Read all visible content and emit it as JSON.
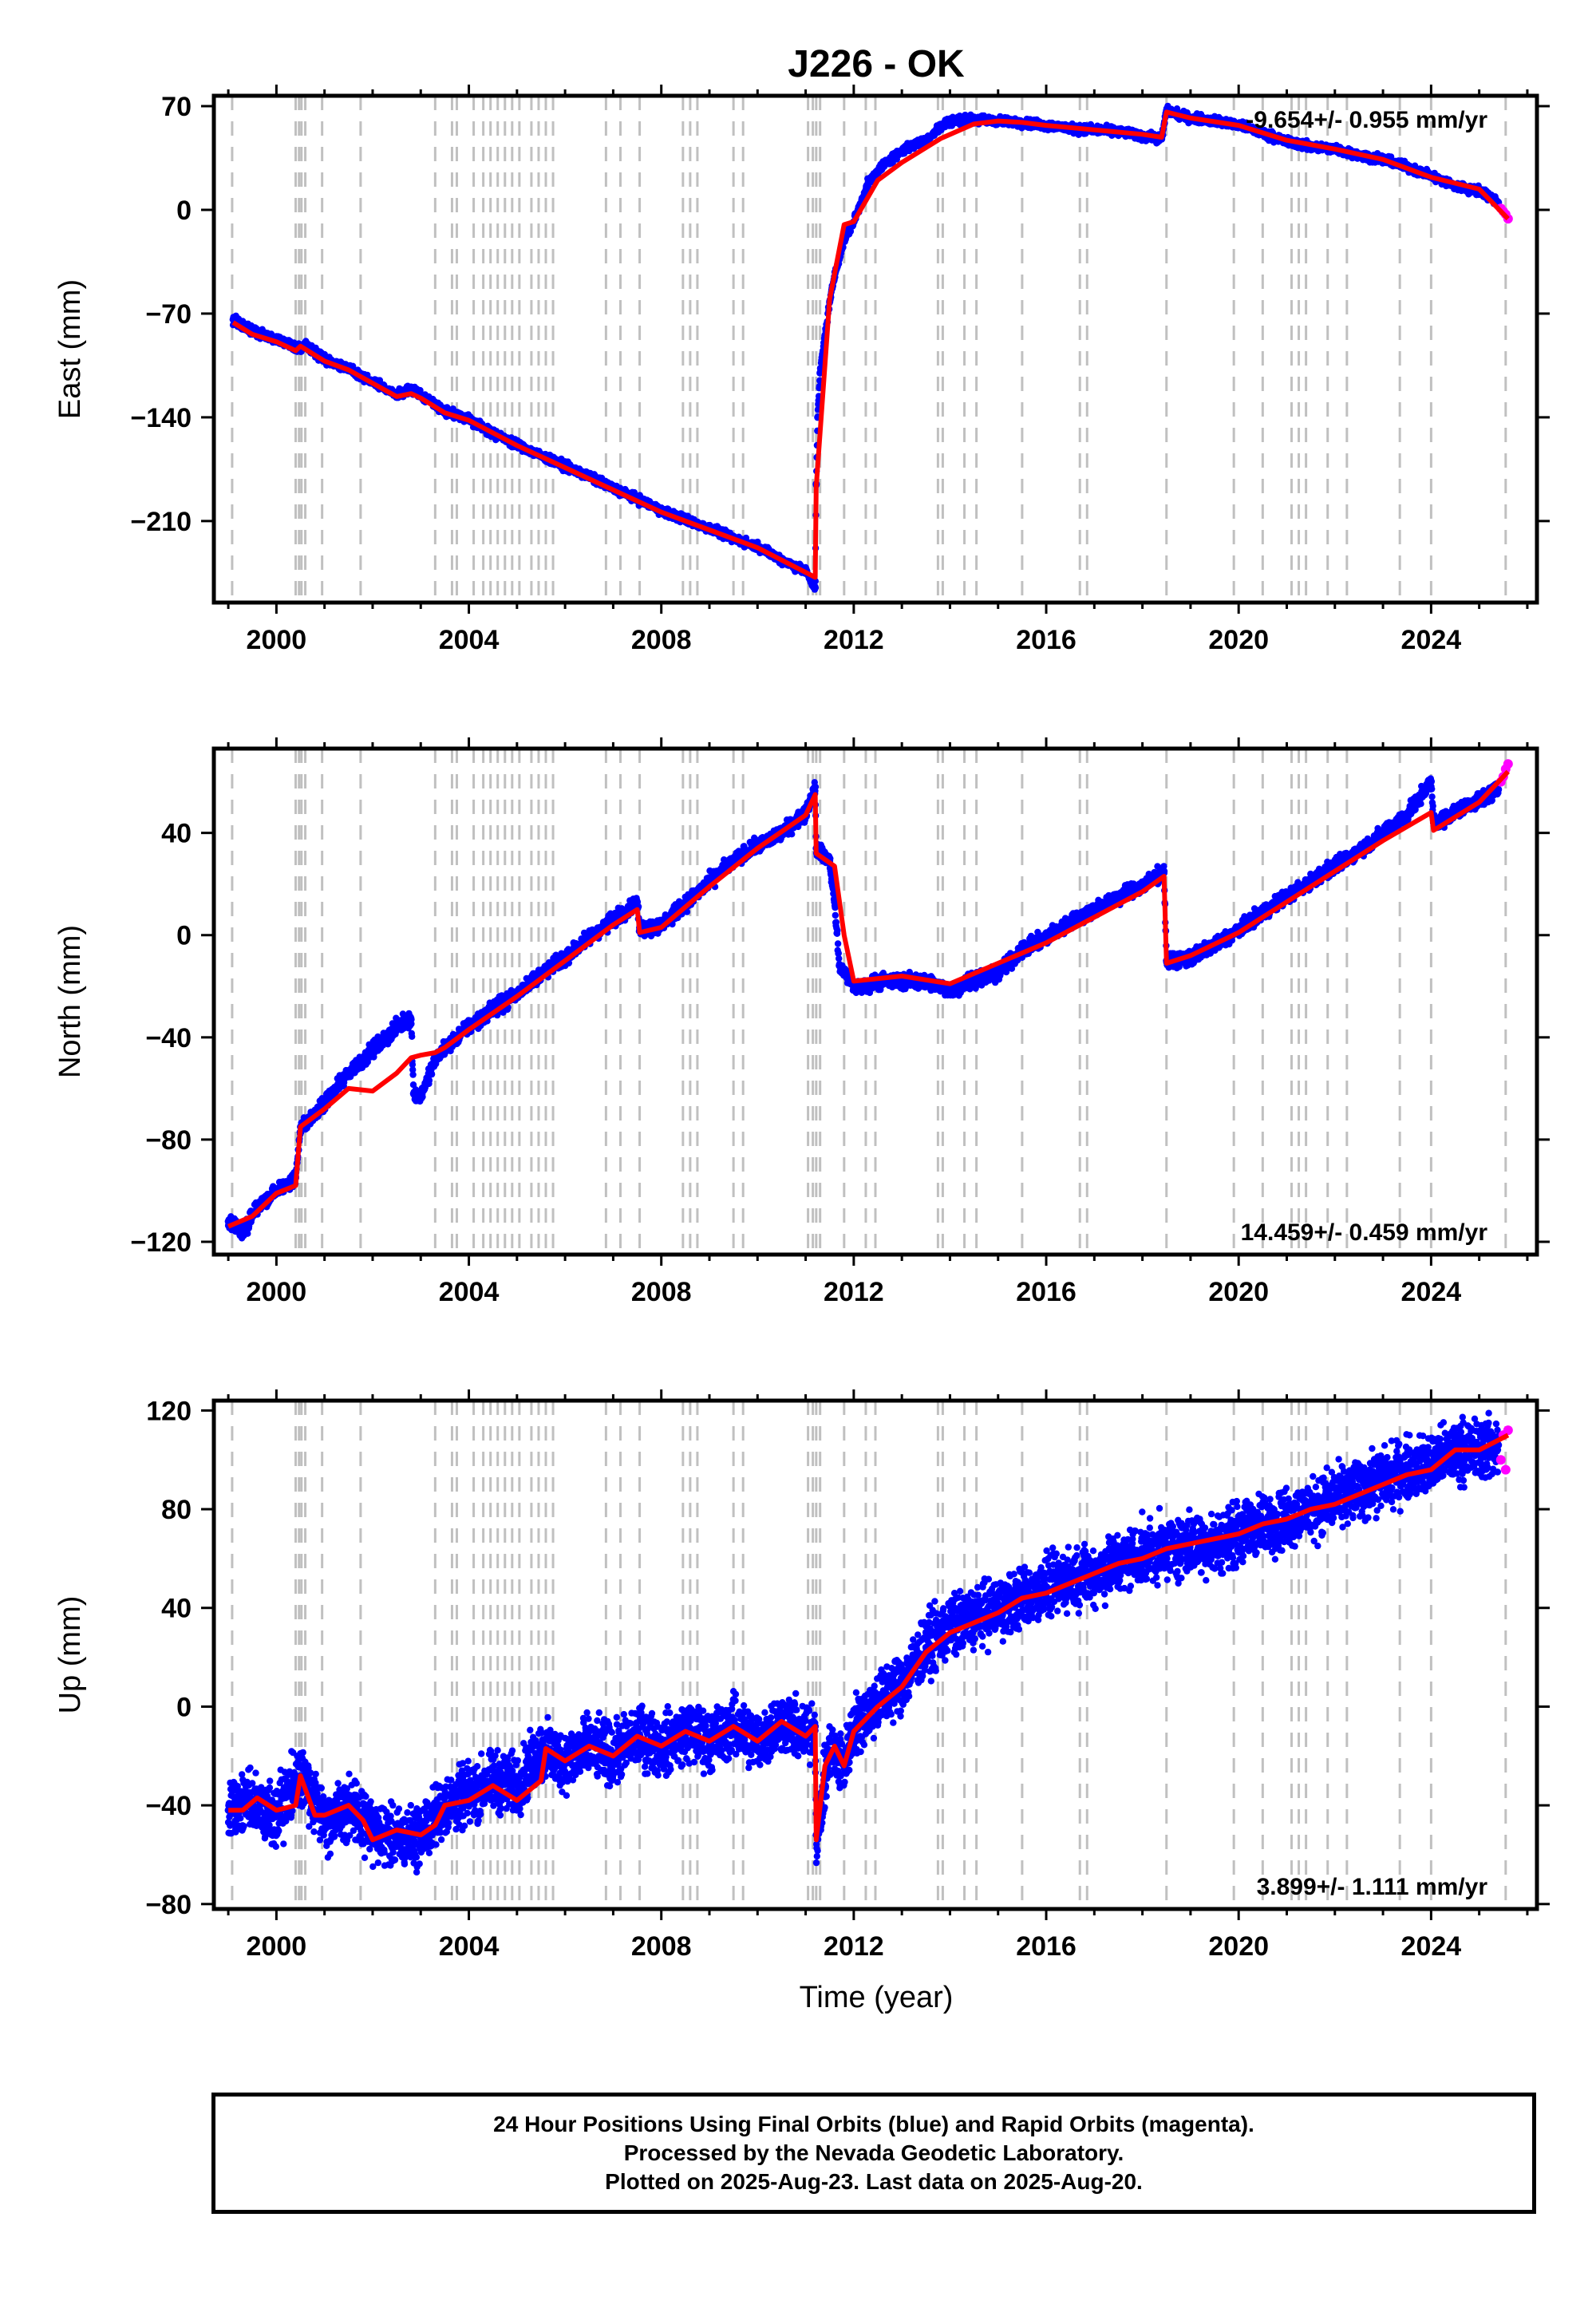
{
  "title": "J226 - OK",
  "xlabel": "Time (year)",
  "footer": {
    "line1": "24 Hour Positions Using Final Orbits (blue) and Rapid Orbits (magenta).",
    "line2": "Processed by the Nevada Geodetic Laboratory.",
    "line3": "Plotted on 2025-Aug-23. Last data on 2025-Aug-20."
  },
  "colors": {
    "final": "#0000ff",
    "rapid": "#ff00ff",
    "model": "#ff0000",
    "event_lines": "#c0c0c0"
  },
  "chart_data": [
    {
      "type": "scatter",
      "panel": "east",
      "ylabel": "East (mm)",
      "ylim": [
        -265,
        77
      ],
      "yticks": [
        70,
        0,
        -70,
        -140,
        -210
      ],
      "xlim": [
        1998.7,
        2026.2
      ],
      "xticks": [
        2000,
        2004,
        2008,
        2012,
        2016,
        2020,
        2024
      ],
      "rate_label": "-9.654+/- 0.955 mm/yr",
      "rate_position": "top-right",
      "series": [
        {
          "name": "Final Orbits",
          "color": "#0000ff",
          "x": [
            1999.1,
            1999.5,
            2000.0,
            2000.5,
            2000.6,
            2001.0,
            2001.5,
            2002.0,
            2002.5,
            2002.8,
            2003.0,
            2003.5,
            2004.0,
            2004.5,
            2005.0,
            2005.5,
            2006.0,
            2006.5,
            2007.0,
            2007.5,
            2008.0,
            2008.5,
            2009.0,
            2009.5,
            2010.0,
            2010.5,
            2011.0,
            2011.2,
            2011.22,
            2011.25,
            2011.3,
            2011.4,
            2011.5,
            2011.6,
            2011.8,
            2012.0,
            2012.3,
            2012.6,
            2013.0,
            2013.5,
            2013.8,
            2014.0,
            2014.5,
            2015.0,
            2015.5,
            2016.0,
            2016.5,
            2017.0,
            2017.5,
            2018.0,
            2018.4,
            2018.5,
            2019.0,
            2019.5,
            2020.0,
            2020.5,
            2021.0,
            2021.5,
            2022.0,
            2022.5,
            2023.0,
            2023.5,
            2024.0,
            2024.5,
            2025.0,
            2025.4
          ],
          "y": [
            -74,
            -82,
            -87,
            -94,
            -91,
            -101,
            -107,
            -116,
            -125,
            -121,
            -125,
            -136,
            -141,
            -151,
            -158,
            -166,
            -173,
            -180,
            -188,
            -195,
            -203,
            -209,
            -215,
            -222,
            -227,
            -236,
            -244,
            -255,
            -185,
            -140,
            -110,
            -85,
            -62,
            -45,
            -20,
            -8,
            18,
            30,
            40,
            47,
            56,
            60,
            61,
            60,
            59,
            57,
            55,
            54,
            53,
            50,
            48,
            67,
            62,
            60,
            57,
            52,
            46,
            43,
            41,
            37,
            34,
            29,
            23,
            16,
            13,
            5
          ]
        },
        {
          "name": "Rapid Orbits",
          "color": "#ff00ff",
          "x": [
            2025.45,
            2025.5,
            2025.55,
            2025.6
          ],
          "y": [
            1,
            -1,
            -3,
            -6
          ]
        },
        {
          "name": "Model",
          "color": "#ff0000",
          "x": [
            1999.1,
            1999.5,
            2000.0,
            2000.4,
            2000.5,
            2001.0,
            2001.5,
            2002.0,
            2002.5,
            2002.8,
            2003.0,
            2003.5,
            2004.0,
            2005.0,
            2006.0,
            2007.0,
            2008.0,
            2009.0,
            2010.0,
            2011.2,
            2011.22,
            2011.5,
            2011.8,
            2012.0,
            2012.5,
            2013.0,
            2013.8,
            2014.5,
            2015.0,
            2015.5,
            2016.0,
            2017.0,
            2018.0,
            2018.4,
            2018.5,
            2019.0,
            2020.0,
            2021.0,
            2022.0,
            2023.0,
            2024.0,
            2025.0,
            2025.6
          ],
          "y": [
            -76,
            -84,
            -89,
            -95,
            -92,
            -102,
            -108,
            -117,
            -126,
            -124,
            -127,
            -137,
            -142,
            -159,
            -174,
            -189,
            -204,
            -216,
            -228,
            -248,
            -187,
            -60,
            -10,
            -8,
            20,
            32,
            48,
            58,
            60,
            59,
            57,
            54,
            51,
            49,
            66,
            62,
            57,
            47,
            41,
            34,
            22,
            14,
            -6
          ]
        }
      ]
    },
    {
      "type": "scatter",
      "panel": "north",
      "ylabel": "North (mm)",
      "ylim": [
        -125,
        73
      ],
      "yticks": [
        40,
        0,
        -40,
        -80,
        -120
      ],
      "xlim": [
        1998.7,
        2026.2
      ],
      "xticks": [
        2000,
        2004,
        2008,
        2012,
        2016,
        2020,
        2024
      ],
      "rate_label": "14.459+/- 0.459 mm/yr",
      "rate_position": "bottom-right",
      "series": [
        {
          "name": "Final Orbits",
          "color": "#0000ff",
          "x": [
            1999.0,
            1999.3,
            1999.6,
            2000.0,
            2000.4,
            2000.5,
            2000.7,
            2001.0,
            2001.5,
            2002.0,
            2002.5,
            2002.8,
            2002.85,
            2003.0,
            2003.3,
            2003.5,
            2004.0,
            2004.5,
            2005.0,
            2005.5,
            2006.0,
            2006.5,
            2007.0,
            2007.5,
            2007.55,
            2008.0,
            2008.5,
            2009.0,
            2009.5,
            2010.0,
            2010.5,
            2011.0,
            2011.2,
            2011.22,
            2011.5,
            2011.6,
            2011.7,
            2011.9,
            2012.0,
            2012.5,
            2013.0,
            2013.5,
            2014.0,
            2014.5,
            2015.0,
            2015.5,
            2016.0,
            2016.5,
            2017.0,
            2017.5,
            2018.0,
            2018.45,
            2018.5,
            2019.0,
            2019.5,
            2020.0,
            2020.5,
            2021.0,
            2021.5,
            2022.0,
            2022.5,
            2023.0,
            2023.5,
            2024.0,
            2024.05,
            2024.5,
            2025.0,
            2025.4
          ],
          "y": [
            -112,
            -116,
            -107,
            -100,
            -95,
            -75,
            -72,
            -66,
            -54,
            -45,
            -36,
            -33,
            -62,
            -63,
            -49,
            -44,
            -36,
            -29,
            -23,
            -15,
            -9,
            -1,
            6,
            13,
            2,
            4,
            12,
            21,
            29,
            35,
            40,
            48,
            58,
            34,
            29,
            13,
            -12,
            -17,
            -21,
            -18,
            -18,
            -18,
            -22,
            -17,
            -15,
            -6,
            -1,
            5,
            10,
            15,
            19,
            25,
            -10,
            -9,
            -4,
            2,
            9,
            15,
            21,
            27,
            33,
            40,
            47,
            60,
            44,
            48,
            53,
            57
          ]
        },
        {
          "name": "Rapid Orbits",
          "color": "#ff00ff",
          "x": [
            2025.45,
            2025.5,
            2025.55,
            2025.6
          ],
          "y": [
            60,
            62,
            65,
            67
          ]
        },
        {
          "name": "Model",
          "color": "#ff0000",
          "x": [
            1999.0,
            1999.5,
            2000.0,
            2000.4,
            2000.5,
            2001.0,
            2001.5,
            2002.0,
            2002.5,
            2002.8,
            2003.0,
            2003.3,
            2003.5,
            2004.0,
            2005.0,
            2006.0,
            2007.0,
            2007.5,
            2007.55,
            2008.0,
            2009.0,
            2010.0,
            2011.0,
            2011.2,
            2011.22,
            2011.6,
            2011.8,
            2012.0,
            2013.0,
            2014.0,
            2015.0,
            2016.0,
            2017.0,
            2018.0,
            2018.45,
            2018.5,
            2019.0,
            2020.0,
            2021.0,
            2022.0,
            2023.0,
            2024.0,
            2024.05,
            2025.0,
            2025.6
          ],
          "y": [
            -114,
            -110,
            -101,
            -98,
            -75,
            -68,
            -60,
            -61,
            -54,
            -48,
            -47,
            -46,
            -44,
            -37,
            -24,
            -10,
            4,
            10,
            1,
            3,
            19,
            34,
            47,
            55,
            32,
            27,
            0,
            -18,
            -16,
            -19,
            -11,
            -3,
            7,
            17,
            23,
            -11,
            -8,
            1,
            13,
            25,
            37,
            48,
            41,
            52,
            64
          ]
        }
      ]
    },
    {
      "type": "scatter",
      "panel": "up",
      "ylabel": "Up (mm)",
      "ylim": [
        -82,
        124
      ],
      "yticks": [
        120,
        80,
        40,
        0,
        -40,
        -80
      ],
      "xlim": [
        1998.7,
        2026.2
      ],
      "xticks": [
        2000,
        2004,
        2008,
        2012,
        2016,
        2020,
        2024
      ],
      "rate_label": "3.899+/- 1.111 mm/yr",
      "rate_position": "bottom-right",
      "series": [
        {
          "name": "Final Orbits",
          "color": "#0000ff",
          "x": [
            1999.0,
            1999.5,
            2000.0,
            2000.5,
            2001.0,
            2001.5,
            2002.0,
            2002.5,
            2003.0,
            2003.5,
            2004.0,
            2004.5,
            2005.0,
            2005.5,
            2006.0,
            2006.5,
            2007.0,
            2007.5,
            2008.0,
            2008.5,
            2009.0,
            2009.5,
            2010.0,
            2010.5,
            2011.0,
            2011.2,
            2011.22,
            2011.5,
            2011.8,
            2012.0,
            2012.5,
            2013.0,
            2013.5,
            2014.0,
            2014.5,
            2015.0,
            2015.5,
            2016.0,
            2016.5,
            2017.0,
            2017.5,
            2018.0,
            2018.5,
            2019.0,
            2019.5,
            2020.0,
            2020.5,
            2021.0,
            2021.5,
            2022.0,
            2022.5,
            2023.0,
            2023.5,
            2024.0,
            2024.5,
            2025.0,
            2025.4
          ],
          "y": [
            -42,
            -38,
            -44,
            -28,
            -46,
            -40,
            -50,
            -54,
            -52,
            -40,
            -36,
            -30,
            -32,
            -18,
            -22,
            -16,
            -20,
            -12,
            -16,
            -10,
            -14,
            -8,
            -14,
            -6,
            -12,
            -8,
            -52,
            -18,
            -24,
            -8,
            2,
            10,
            24,
            32,
            36,
            40,
            44,
            48,
            52,
            54,
            58,
            62,
            64,
            66,
            66,
            70,
            74,
            76,
            80,
            84,
            88,
            92,
            96,
            98,
            104,
            104,
            106
          ]
        },
        {
          "name": "Rapid Orbits",
          "color": "#ff00ff",
          "x": [
            2025.45,
            2025.5,
            2025.55,
            2025.6
          ],
          "y": [
            100,
            110,
            96,
            112
          ]
        },
        {
          "name": "Model",
          "color": "#ff0000",
          "x": [
            1999.0,
            1999.3,
            1999.6,
            2000.0,
            2000.4,
            2000.5,
            2000.8,
            2001.0,
            2001.5,
            2001.8,
            2002.0,
            2002.5,
            2003.0,
            2003.3,
            2003.5,
            2004.0,
            2004.5,
            2005.0,
            2005.5,
            2005.6,
            2006.0,
            2006.5,
            2007.0,
            2007.5,
            2008.0,
            2008.5,
            2009.0,
            2009.5,
            2010.0,
            2010.5,
            2011.0,
            2011.2,
            2011.22,
            2011.4,
            2011.6,
            2011.8,
            2012.0,
            2012.5,
            2013.0,
            2013.5,
            2014.0,
            2014.5,
            2015.0,
            2015.5,
            2016.0,
            2016.5,
            2017.0,
            2017.5,
            2018.0,
            2018.5,
            2019.0,
            2019.5,
            2020.0,
            2020.5,
            2021.0,
            2021.5,
            2022.0,
            2022.5,
            2023.0,
            2023.5,
            2024.0,
            2024.5,
            2025.0,
            2025.6
          ],
          "y": [
            -42,
            -42,
            -37,
            -42,
            -40,
            -28,
            -44,
            -44,
            -40,
            -46,
            -54,
            -50,
            -52,
            -48,
            -40,
            -38,
            -32,
            -38,
            -30,
            -17,
            -22,
            -16,
            -20,
            -12,
            -16,
            -10,
            -14,
            -8,
            -14,
            -6,
            -12,
            -8,
            -54,
            -24,
            -16,
            -24,
            -10,
            0,
            8,
            22,
            30,
            34,
            38,
            44,
            46,
            50,
            54,
            58,
            60,
            64,
            66,
            68,
            70,
            74,
            76,
            80,
            82,
            86,
            90,
            94,
            96,
            104,
            104,
            110
          ]
        }
      ]
    }
  ],
  "event_years": [
    1999.08,
    2000.4,
    2000.47,
    2000.52,
    2000.6,
    2000.95,
    2001.75,
    2003.3,
    2003.65,
    2003.75,
    2004.1,
    2004.3,
    2004.45,
    2004.6,
    2004.75,
    2004.9,
    2005.05,
    2005.3,
    2005.45,
    2005.6,
    2005.75,
    2006.85,
    2007.15,
    2007.55,
    2008.45,
    2008.6,
    2008.75,
    2009.5,
    2009.7,
    2011.05,
    2011.15,
    2011.22,
    2011.3,
    2011.8,
    2012.25,
    2012.45,
    2013.75,
    2013.85,
    2014.3,
    2014.55,
    2015.5,
    2016.7,
    2016.85,
    2018.5,
    2019.9,
    2020.5,
    2021.1,
    2021.25,
    2021.4,
    2021.85,
    2022.25,
    2023.35,
    2024.0,
    2025.55
  ]
}
